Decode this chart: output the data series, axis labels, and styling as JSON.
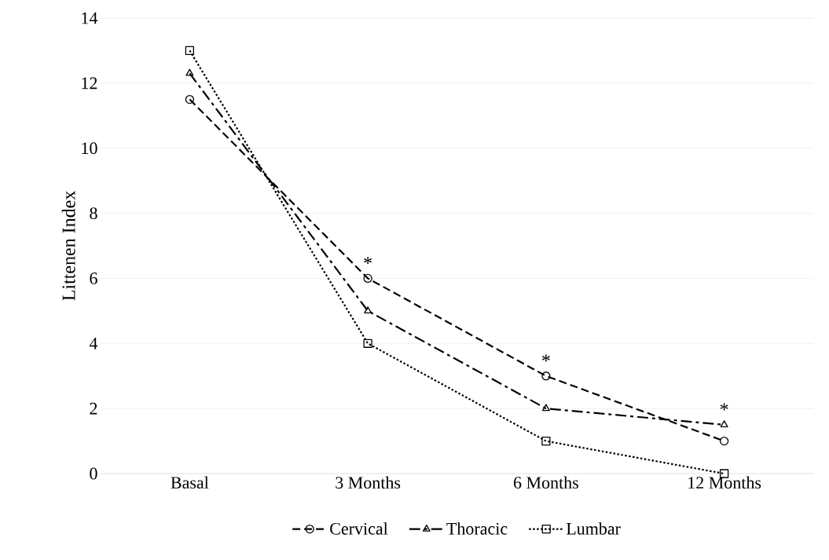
{
  "chart_data": {
    "type": "line",
    "ylabel": "Littenen Index",
    "categories": [
      "Basal",
      "3 Months",
      "6 Months",
      "12 Months"
    ],
    "series": [
      {
        "name": "Cervical",
        "color": "#000000",
        "values": [
          11.5,
          6,
          3,
          1
        ],
        "marker": "circle",
        "line_style": "dashed"
      },
      {
        "name": "Thoracic",
        "color": "#000000",
        "values": [
          12.3,
          5,
          2,
          1.5
        ],
        "marker": "triangle",
        "line_style": "dashed"
      },
      {
        "name": "Lumbar",
        "color": "#000000",
        "values": [
          13,
          4,
          1,
          0
        ],
        "marker": "square",
        "line_style": "dotted"
      }
    ],
    "ylim": [
      0,
      14
    ],
    "yticks": [
      0,
      2,
      4,
      6,
      8,
      10,
      12,
      14
    ],
    "grid": "y",
    "legend": "bottom",
    "annotations": [
      {
        "text": "*",
        "x": "3 Months",
        "y": 6
      },
      {
        "text": "*",
        "x": "6 Months",
        "y": 3
      },
      {
        "text": "*",
        "x": "12 Months",
        "y": 1.5
      }
    ]
  }
}
